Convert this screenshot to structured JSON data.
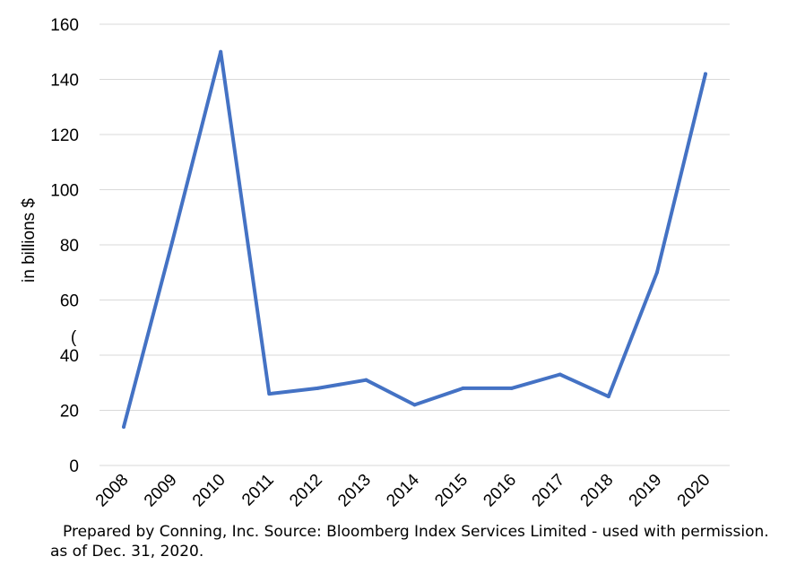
{
  "chart_data": {
    "type": "line",
    "x": [
      "2008",
      "2009",
      "2010",
      "2011",
      "2012",
      "2013",
      "2014",
      "2015",
      "2016",
      "2017",
      "2018",
      "2019",
      "2020"
    ],
    "series": [
      {
        "values": [
          14,
          81,
          150,
          26,
          28,
          31,
          22,
          28,
          28,
          33,
          25,
          70,
          142
        ],
        "color": "#4472C4"
      }
    ],
    "ylabel": "in billions $",
    "ylim": [
      0,
      160
    ],
    "yticks": [
      "0",
      "20",
      "40",
      "60",
      "80",
      "100",
      "120",
      "140",
      "160"
    ],
    "grid": true,
    "legend": "none",
    "annotation": "("
  },
  "footer": {
    "line1": "Prepared by Conning, Inc. Source: Bloomberg Index Services Limited - used with permission.",
    "line2": "as of Dec. 31, 2020."
  }
}
